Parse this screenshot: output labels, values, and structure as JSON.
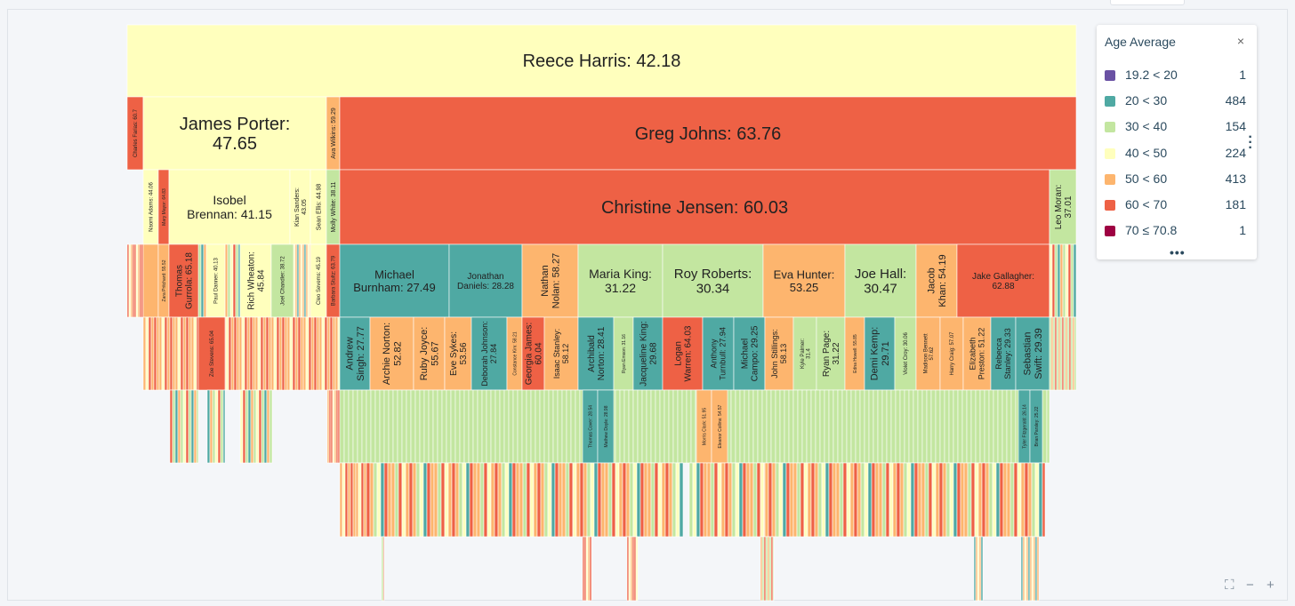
{
  "legend": {
    "title": "Age Average",
    "close": "×",
    "more": "•••",
    "items": [
      {
        "label": "19.2 < 20",
        "count": "1",
        "color": "#6a51a3"
      },
      {
        "label": "20 < 30",
        "count": "484",
        "color": "#4fa9a3"
      },
      {
        "label": "30 < 40",
        "count": "154",
        "color": "#c3e6a0"
      },
      {
        "label": "40 < 50",
        "count": "224",
        "color": "#ffffbd"
      },
      {
        "label": "50 < 60",
        "count": "413",
        "color": "#fdb56e"
      },
      {
        "label": "60 < 70",
        "count": "181",
        "color": "#ee6145"
      },
      {
        "label": "70 ≤ 70.8",
        "count": "1",
        "color": "#9e0142"
      }
    ]
  },
  "controls": {
    "fullscreen": "⛶",
    "zoom_out": "−",
    "zoom_in": "+",
    "kebab": "⋮"
  },
  "chart_data": {
    "type": "icicle",
    "metric": "Age Average",
    "root": {
      "name": "Reece Harris",
      "value": 42.18
    },
    "level1": [
      {
        "name": "Charles Farias",
        "value": 60.7
      },
      {
        "name": "James Porter",
        "value": 47.65
      },
      {
        "name": "Ava Wilkins",
        "value": 59.29
      },
      {
        "name": "Greg Johns",
        "value": 63.76
      }
    ],
    "level2": [
      {
        "name": "Naomi Adams",
        "value": 44.06
      },
      {
        "name": "Mary Mayor",
        "value": 64.83
      },
      {
        "name": "Isobel Brennan",
        "value": 41.15
      },
      {
        "name": "Kian Sanders",
        "value": 43.05
      },
      {
        "name": "Sean Ellis",
        "value": 44.98
      },
      {
        "name": "Molly White",
        "value": 38.11
      },
      {
        "name": "Christine Jensen",
        "value": 60.03
      },
      {
        "name": "Leo Moran",
        "value": 37.01
      }
    ],
    "level3": [
      {
        "name": "Zara Pritchard",
        "value": 55.52
      },
      {
        "name": "Thomas Gurrola",
        "value": 65.18
      },
      {
        "name": "Paul Danner",
        "value": 40.13
      },
      {
        "name": "Rich Wheaton",
        "value": 45.84
      },
      {
        "name": "Joel Chandler",
        "value": 38.72
      },
      {
        "name": "Cleo Sevems",
        "value": 45.19
      },
      {
        "name": "Barbara Stultz",
        "value": 63.79
      },
      {
        "name": "Michael Burnham",
        "value": 27.49
      },
      {
        "name": "Jonathan Daniels",
        "value": 28.28
      },
      {
        "name": "Nathan Nolan",
        "value": 58.27
      },
      {
        "name": "Maria King",
        "value": 31.22
      },
      {
        "name": "Roy Roberts",
        "value": 30.34
      },
      {
        "name": "Eva Hunter",
        "value": 53.25
      },
      {
        "name": "Joe Hall",
        "value": 30.47
      },
      {
        "name": "Jacob Khan",
        "value": 54.19
      },
      {
        "name": "Jake Gallagher",
        "value": 62.88
      }
    ],
    "level4": [
      {
        "name": "Zoe Stevens",
        "value": 65.04
      },
      {
        "name": "Andrew Singh",
        "value": 27.77
      },
      {
        "name": "Archie Norton",
        "value": 52.82
      },
      {
        "name": "Ruby Joyce",
        "value": 55.67
      },
      {
        "name": "Eve Sykes",
        "value": 53.56
      },
      {
        "name": "Deborah Johnson",
        "value": 27.84
      },
      {
        "name": "Constance Kim",
        "value": 58.21
      },
      {
        "name": "Georgia James",
        "value": 60.04
      },
      {
        "name": "Isaac Stanley",
        "value": 58.12
      },
      {
        "name": "Archibald Norton",
        "value": 28.41
      },
      {
        "name": "Ryan Emson",
        "value": 31.16
      },
      {
        "name": "Jacqueline King",
        "value": 29.68
      },
      {
        "name": "Logan Warren",
        "value": 64.03
      },
      {
        "name": "Anthony Turnbull",
        "value": 27.94
      },
      {
        "name": "Michael Campo",
        "value": 29.25
      },
      {
        "name": "John Stillings",
        "value": 58.13
      },
      {
        "name": "Kyle Palmer",
        "value": 31.4
      },
      {
        "name": "Ryan Page",
        "value": 31.22
      },
      {
        "name": "Edna Howell",
        "value": 55.85
      },
      {
        "name": "Demi Kemp",
        "value": 29.71
      },
      {
        "name": "Violet Croy",
        "value": 30.06
      },
      {
        "name": "Madison Bennett",
        "value": 57.62
      },
      {
        "name": "Harry Craig",
        "value": 57.07
      },
      {
        "name": "Elizabeth Preston",
        "value": 51.22
      },
      {
        "name": "Rebecca Stanley",
        "value": 29.33
      },
      {
        "name": "Sebastian Swift",
        "value": 29.39
      }
    ],
    "level5": [
      {
        "name": "Thomas Cover",
        "value": 28.54
      },
      {
        "name": "Mathew Doyle",
        "value": 28.98
      },
      {
        "name": "Morris Clark",
        "value": 51.95
      },
      {
        "name": "Eleanor Collins",
        "value": 54.57
      },
      {
        "name": "Tyler Fitzgerald",
        "value": 26.14
      },
      {
        "name": "Brian Parsley",
        "value": 25.22
      }
    ]
  }
}
